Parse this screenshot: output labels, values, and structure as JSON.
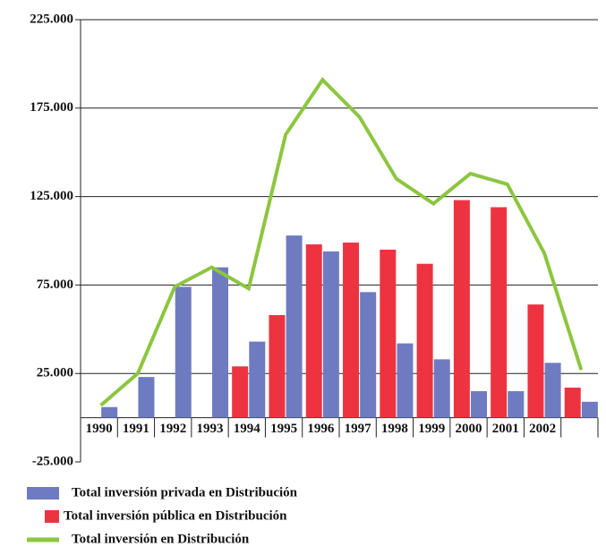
{
  "chart_data": {
    "type": "bar_line",
    "categories": [
      "1990",
      "1991",
      "1992",
      "1993",
      "1994",
      "1995",
      "1996",
      "1997",
      "1998",
      "1999",
      "2000",
      "2001",
      "2002",
      null
    ],
    "series": [
      {
        "name": "Total inversión privada en Distribución",
        "type": "bar",
        "color": "#6f7bc0",
        "values": [
          6000,
          23000,
          74000,
          85000,
          43000,
          103000,
          94000,
          71000,
          42000,
          33000,
          15000,
          15000,
          31000,
          9000
        ]
      },
      {
        "name": "Total inversión pública en Distribución",
        "type": "bar",
        "color": "#ee3340",
        "values": [
          0,
          0,
          0,
          0,
          29000,
          58000,
          98000,
          99000,
          95000,
          87000,
          123000,
          119000,
          64000,
          17000
        ]
      },
      {
        "name": "Total inversión en Distribución",
        "type": "line",
        "color": "#8cc63f",
        "values": [
          7000,
          25000,
          74000,
          85000,
          73000,
          160000,
          191000,
          170000,
          135000,
          121000,
          138000,
          132000,
          93000,
          27000
        ]
      }
    ],
    "ylim": [
      -25000,
      225000
    ],
    "yticks": [
      {
        "value": -25000,
        "label": "-25.000"
      },
      {
        "value": 25000,
        "label": "25.000"
      },
      {
        "value": 75000,
        "label": "75.000"
      },
      {
        "value": 125000,
        "label": "125.000"
      },
      {
        "value": 175000,
        "label": "175.000"
      },
      {
        "value": 225000,
        "label": "225.000"
      }
    ],
    "grid": true
  }
}
